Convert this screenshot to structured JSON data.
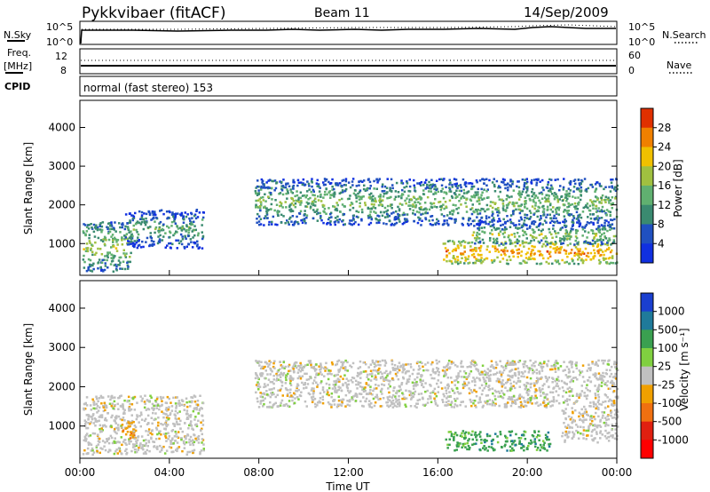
{
  "header": {
    "title": "Pykkvibaer (fitACF)",
    "beam": "Beam 11",
    "date": "14/Sep/2009"
  },
  "noise_panel": {
    "left_label": "N.Sky",
    "left_ticks": [
      "10^5",
      "10^0"
    ],
    "right_label": "N.Search",
    "right_ticks": [
      "10^5",
      "10^0"
    ]
  },
  "freq_panel": {
    "left_label_top": "Freq.",
    "left_label_bottom": "[MHz]",
    "left_ticks": [
      "12",
      "8"
    ],
    "right_label": "Nave",
    "right_ticks": [
      "60",
      "0"
    ]
  },
  "cpid": {
    "label": "CPID",
    "value": "normal (fast stereo) 153"
  },
  "chart_data": [
    {
      "type": "heatmap",
      "title": "",
      "ylabel": "Slant Range [km]",
      "xlabel": "",
      "ylim": [
        180,
        4700
      ],
      "yticks": [
        1000,
        2000,
        3000,
        4000
      ],
      "xlim": [
        0,
        24
      ],
      "colorbar_label": "Power [dB]",
      "colorbar_ticks": [
        "4",
        "8",
        "12",
        "16",
        "20",
        "24",
        "28"
      ],
      "colors": [
        "#1030e0",
        "#2050c0",
        "#3a8a70",
        "#60b070",
        "#a0c040",
        "#f0c000",
        "#f08000",
        "#e03000"
      ],
      "echo_regions": [
        {
          "t_start": 0.1,
          "t_end": 2.3,
          "range_start": 300,
          "range_end": 1600,
          "level_db": 16
        },
        {
          "t_start": 2.0,
          "t_end": 5.5,
          "range_start": 900,
          "range_end": 1900,
          "level_db": 12
        },
        {
          "t_start": 7.8,
          "t_end": 24.0,
          "range_start": 1500,
          "range_end": 2700,
          "level_db": 14
        },
        {
          "t_start": 16.2,
          "t_end": 24.0,
          "range_start": 500,
          "range_end": 1100,
          "level_db": 24
        },
        {
          "t_start": 17.5,
          "t_end": 24.0,
          "range_start": 1000,
          "range_end": 1500,
          "level_db": 16
        }
      ]
    },
    {
      "type": "heatmap",
      "title": "",
      "ylabel": "Slant Range [km]",
      "xlabel": "Time UT",
      "ylim": [
        180,
        4700
      ],
      "yticks": [
        1000,
        2000,
        3000,
        4000
      ],
      "xlim": [
        0,
        24
      ],
      "xticks": [
        "00:00",
        "04:00",
        "08:00",
        "12:00",
        "16:00",
        "20:00",
        "00:00"
      ],
      "colorbar_label": "Velocity [m s⁻¹]",
      "colorbar_ticks": [
        "1000",
        "500",
        "100",
        "25",
        "-25",
        "-100",
        "-500",
        "-1000"
      ],
      "colors": [
        "#1a3fcf",
        "#1f7a9a",
        "#3aa050",
        "#80d040",
        "#c0c0c0",
        "#f0a000",
        "#f07010",
        "#e02010",
        "#ff0000"
      ],
      "echo_regions": [
        {
          "t_start": 0.1,
          "t_end": 5.5,
          "range_start": 300,
          "range_end": 1800,
          "velocity": 0
        },
        {
          "t_start": 1.8,
          "t_end": 2.5,
          "range_start": 700,
          "range_end": 1200,
          "velocity": -300
        },
        {
          "t_start": 7.8,
          "t_end": 24.0,
          "range_start": 1500,
          "range_end": 2700,
          "velocity": 0
        },
        {
          "t_start": 16.3,
          "t_end": 21.0,
          "range_start": 400,
          "range_end": 900,
          "velocity": 300
        },
        {
          "t_start": 21.5,
          "t_end": 24.0,
          "range_start": 600,
          "range_end": 1500,
          "velocity": 0
        }
      ]
    }
  ]
}
